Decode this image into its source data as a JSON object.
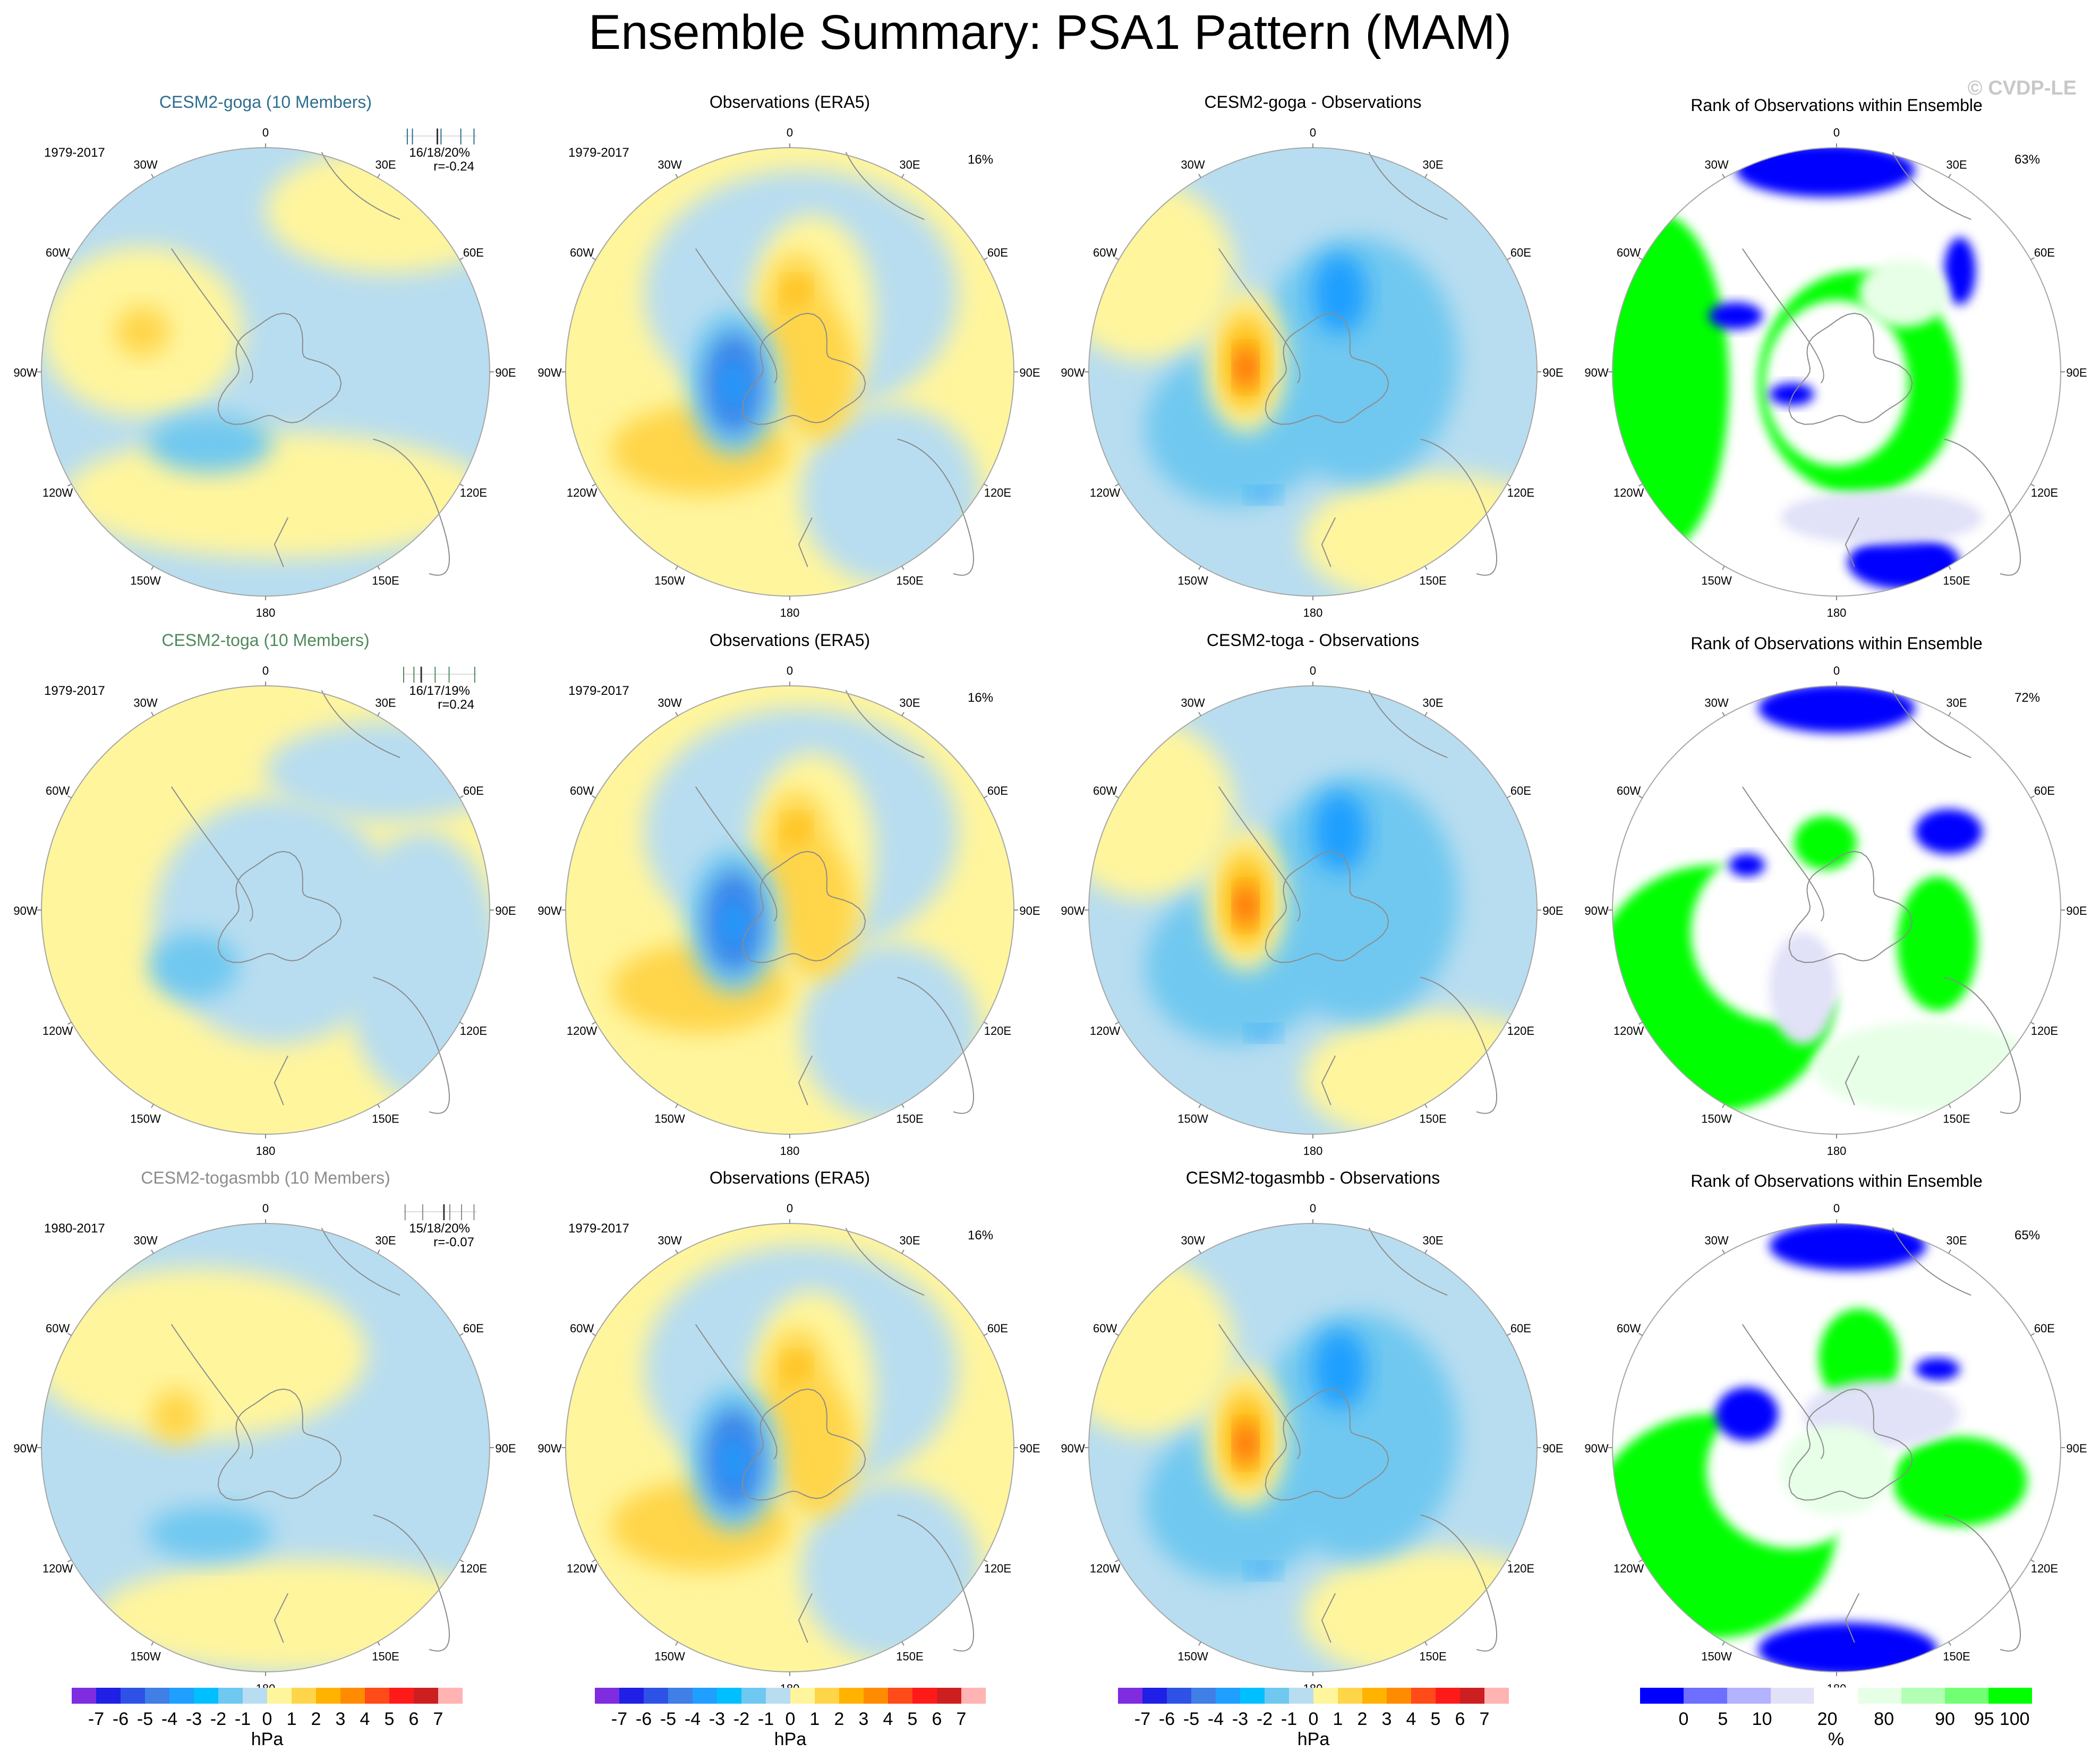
{
  "title": "Ensemble Summary: PSA1 Pattern (MAM)",
  "watermark": "© CVDP-LE",
  "lon_labels": [
    "0",
    "30E",
    "60E",
    "90E",
    "120E",
    "150E",
    "180",
    "150W",
    "120W",
    "90W",
    "60W",
    "30W"
  ],
  "colors": {
    "ensemble_title_goga": "#2e6e8e",
    "ensemble_title_toga": "#4f8a5a",
    "ensemble_title_togasmbb": "#8c8c8c",
    "map_outline": "#a6a6a6",
    "coast": "#8c8c8c"
  },
  "rows": [
    {
      "ensemble": {
        "title": "CESM2-goga (10 Members)",
        "title_color_key": "ensemble_title_goga",
        "period": "1979-2017",
        "pct_stats": "16/18/20%",
        "corr": "r=-0.24",
        "tick_positions": [
          0.05,
          0.12,
          0.46,
          0.51,
          0.78,
          0.96
        ]
      },
      "obs": {
        "title": "Observations (ERA5)",
        "period": "1979-2017",
        "pct": "16%"
      },
      "diff": {
        "title": "CESM2-goga - Observations"
      },
      "rank": {
        "title": "Rank of Observations within Ensemble",
        "pct": "63%"
      }
    },
    {
      "ensemble": {
        "title": "CESM2-toga (10 Members)",
        "title_color_key": "ensemble_title_toga",
        "period": "1979-2017",
        "pct_stats": "16/17/19%",
        "corr": "r=0.24",
        "tick_positions": [
          0.0,
          0.14,
          0.24,
          0.43,
          0.62,
          0.97
        ]
      },
      "obs": {
        "title": "Observations (ERA5)",
        "period": "1979-2017",
        "pct": "16%"
      },
      "diff": {
        "title": "CESM2-toga - Observations"
      },
      "rank": {
        "title": "Rank of Observations within Ensemble",
        "pct": "72%"
      }
    },
    {
      "ensemble": {
        "title": "CESM2-togasmbb (10 Members)",
        "title_color_key": "ensemble_title_togasmbb",
        "period": "1980-2017",
        "pct_stats": "15/18/20%",
        "corr": "r=-0.07",
        "tick_positions": [
          0.02,
          0.26,
          0.55,
          0.63,
          0.79,
          0.96
        ]
      },
      "obs": {
        "title": "Observations (ERA5)",
        "period": "1979-2017",
        "pct": "16%"
      },
      "diff": {
        "title": "CESM2-togasmbb - Observations"
      },
      "rank": {
        "title": "Rank of Observations within Ensemble",
        "pct": "65%"
      }
    }
  ],
  "colorbar_hpa": {
    "unit_label": "hPa",
    "labels": [
      "-7",
      "-6",
      "-5",
      "-4",
      "-3",
      "-2",
      "-1",
      "0",
      "1",
      "2",
      "3",
      "4",
      "5",
      "6",
      "7"
    ],
    "colors": [
      "#7f2be0",
      "#1f1fe6",
      "#2e52e6",
      "#3f7fe6",
      "#1f9fff",
      "#00bfff",
      "#6fc8f0",
      "#b8ddf0",
      "#fff59d",
      "#ffd54a",
      "#ffb300",
      "#ff8c00",
      "#ff4a1a",
      "#ff1a1a",
      "#cc1f1f",
      "#ffb3b3"
    ]
  },
  "colorbar_pct": {
    "unit_label": "%",
    "labels": [
      "0",
      "5",
      "10",
      "20",
      "80",
      "90",
      "95",
      "100"
    ],
    "colors": [
      "#0000ff",
      "#6e6eff",
      "#b3b3ff",
      "#e1e1f8",
      "#ffffff",
      "#e6ffe6",
      "#b3ffb3",
      "#73ff73",
      "#00ff00"
    ]
  },
  "chart_data": {
    "type": "heatmap",
    "description_title": "Ensemble Summary: PSA1 Pattern (MAM)",
    "projection": "south polar stereographic",
    "variable_unit": "hPa",
    "contour_levels_hpa": [
      -7,
      -6,
      -5,
      -4,
      -3,
      -2,
      -1,
      0,
      1,
      2,
      3,
      4,
      5,
      6,
      7
    ],
    "rank_levels_pct": [
      0,
      5,
      10,
      20,
      80,
      90,
      95,
      100
    ],
    "panels": [
      {
        "row": 1,
        "col": 1,
        "title": "CESM2-goga (10 Members)",
        "period": "1979-2017",
        "pct_explained_min_mean_max": [
          16,
          18,
          20
        ],
        "pattern_corr": -0.24,
        "anomalies_hpa": [
          {
            "lon_deg": -100,
            "lat_deg": -61,
            "value": 3
          },
          {
            "lon_deg": -150,
            "lat_deg": -65,
            "value": -3
          }
        ]
      },
      {
        "row": 1,
        "col": 2,
        "title": "Observations (ERA5)",
        "period": "1979-2017",
        "pct_explained": 16,
        "anomalies_hpa": [
          {
            "lon_deg": -100,
            "lat_deg": -58,
            "value": -5
          },
          {
            "lon_deg": -10,
            "lat_deg": -62,
            "value": 4
          },
          {
            "lon_deg": -150,
            "lat_deg": -45,
            "value": 3
          }
        ]
      },
      {
        "row": 1,
        "col": 3,
        "title": "CESM2-goga - Observations",
        "anomalies_hpa": [
          {
            "lon_deg": -100,
            "lat_deg": -60,
            "value": 6
          },
          {
            "lon_deg": -20,
            "lat_deg": -72,
            "value": -3
          }
        ]
      },
      {
        "row": 1,
        "col": 4,
        "title": "Rank of Observations within Ensemble",
        "pct_area_between_10_90": 63
      },
      {
        "row": 2,
        "col": 1,
        "title": "CESM2-toga (10 Members)",
        "period": "1979-2017",
        "pct_explained_min_mean_max": [
          16,
          17,
          19
        ],
        "pattern_corr": 0.24,
        "anomalies_hpa": [
          {
            "lon_deg": -120,
            "lat_deg": -60,
            "value": -2
          }
        ]
      },
      {
        "row": 2,
        "col": 2,
        "title": "Observations (ERA5)",
        "period": "1979-2017",
        "pct_explained": 16,
        "anomalies_hpa": [
          {
            "lon_deg": -100,
            "lat_deg": -58,
            "value": -5
          },
          {
            "lon_deg": -10,
            "lat_deg": -62,
            "value": 4
          },
          {
            "lon_deg": -150,
            "lat_deg": -45,
            "value": 3
          }
        ]
      },
      {
        "row": 2,
        "col": 3,
        "title": "CESM2-toga - Observations",
        "anomalies_hpa": [
          {
            "lon_deg": -100,
            "lat_deg": -60,
            "value": 4
          },
          {
            "lon_deg": -20,
            "lat_deg": -72,
            "value": -3
          }
        ]
      },
      {
        "row": 2,
        "col": 4,
        "title": "Rank of Observations within Ensemble",
        "pct_area_between_10_90": 72
      },
      {
        "row": 3,
        "col": 1,
        "title": "CESM2-togasmbb (10 Members)",
        "period": "1980-2017",
        "pct_explained_min_mean_max": [
          15,
          18,
          20
        ],
        "pattern_corr": -0.07,
        "anomalies_hpa": [
          {
            "lon_deg": -100,
            "lat_deg": -60,
            "value": 3
          },
          {
            "lon_deg": -150,
            "lat_deg": -63,
            "value": -2
          }
        ]
      },
      {
        "row": 3,
        "col": 2,
        "title": "Observations (ERA5)",
        "period": "1979-2017",
        "pct_explained": 16,
        "anomalies_hpa": [
          {
            "lon_deg": -100,
            "lat_deg": -58,
            "value": -5
          },
          {
            "lon_deg": -10,
            "lat_deg": -62,
            "value": 4
          },
          {
            "lon_deg": -150,
            "lat_deg": -45,
            "value": 3
          }
        ]
      },
      {
        "row": 3,
        "col": 3,
        "title": "CESM2-togasmbb - Observations",
        "anomalies_hpa": [
          {
            "lon_deg": -100,
            "lat_deg": -60,
            "value": 5
          },
          {
            "lon_deg": -20,
            "lat_deg": -72,
            "value": -3
          }
        ]
      },
      {
        "row": 3,
        "col": 4,
        "title": "Rank of Observations within Ensemble",
        "pct_area_between_10_90": 65
      }
    ]
  }
}
